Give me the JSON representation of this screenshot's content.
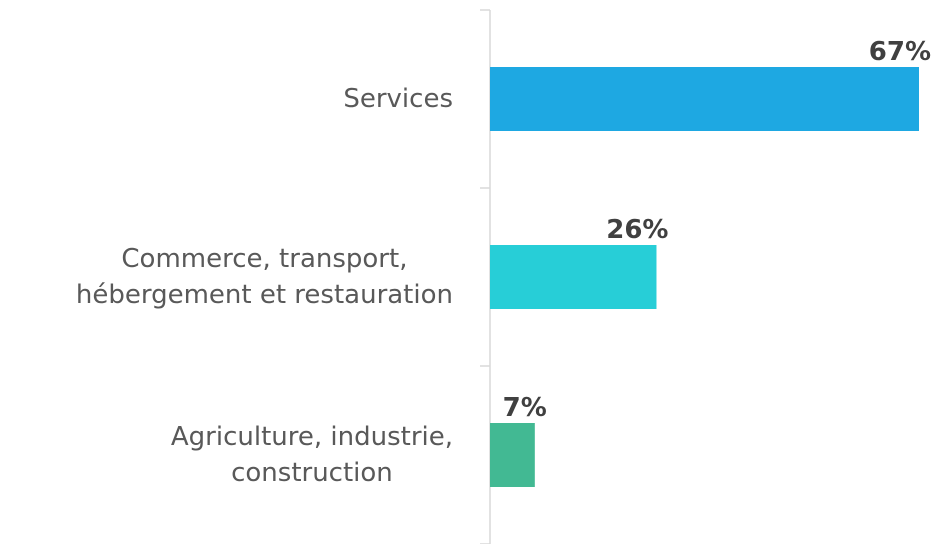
{
  "chart_data": {
    "type": "bar",
    "orientation": "horizontal",
    "categories": [
      "Services",
      "Commerce, transport,\nhébergement et restauration",
      "Agriculture, industrie,\nconstruction"
    ],
    "values": [
      67,
      26,
      7
    ],
    "value_labels": [
      "67%",
      "26%",
      "7%"
    ],
    "colors": [
      "#1ea8e2",
      "#27ced7",
      "#42b993"
    ]
  }
}
